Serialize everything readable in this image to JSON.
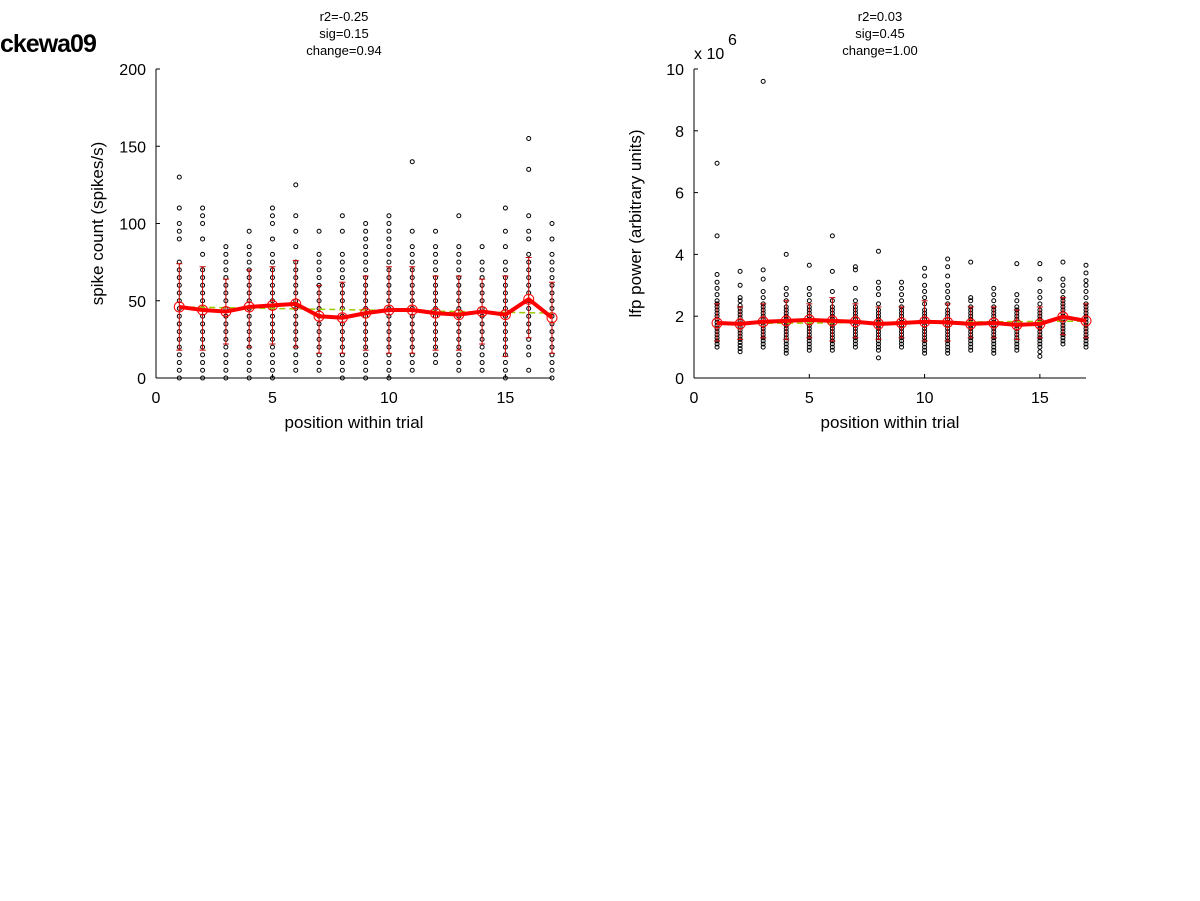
{
  "figure_label": "ckewa09",
  "colors": {
    "mean_line": "#ff0000",
    "error_bar": "#cc0000",
    "fit_line": "#99cc00",
    "points": "#000000"
  },
  "chart_data": [
    {
      "type": "scatter",
      "title_lines": [
        "r2=-0.25",
        "sig=0.15",
        "change=0.94"
      ],
      "xlabel": "position within trial",
      "ylabel": "spike count (spikes/s)",
      "xlim": [
        0,
        17
      ],
      "ylim": [
        0,
        200
      ],
      "xticks": [
        0,
        5,
        10,
        15
      ],
      "yticks": [
        0,
        50,
        100,
        150,
        200
      ],
      "exponent_label": "",
      "exponent_power": "",
      "grid": false,
      "x": [
        1,
        2,
        3,
        4,
        5,
        6,
        7,
        8,
        9,
        10,
        11,
        12,
        13,
        14,
        15,
        16,
        17
      ],
      "mean": [
        46,
        44,
        43,
        46,
        47,
        48,
        40,
        39,
        42,
        44,
        44,
        42,
        41,
        43,
        41,
        51,
        39
      ],
      "error_lower": [
        18,
        18,
        22,
        20,
        22,
        20,
        16,
        16,
        18,
        16,
        16,
        18,
        18,
        22,
        14,
        26,
        16
      ],
      "error_upper": [
        74,
        72,
        64,
        70,
        72,
        76,
        60,
        62,
        66,
        72,
        72,
        66,
        66,
        64,
        66,
        78,
        62
      ],
      "fit_line": {
        "x": [
          1,
          17
        ],
        "y": [
          46,
          42
        ]
      },
      "points": [
        [
          0,
          5,
          10,
          15,
          20,
          25,
          30,
          35,
          40,
          45,
          50,
          55,
          60,
          65,
          70,
          75,
          90,
          95,
          100,
          110,
          130
        ],
        [
          0,
          5,
          10,
          15,
          20,
          25,
          30,
          35,
          40,
          45,
          50,
          55,
          60,
          65,
          70,
          80,
          90,
          100,
          105,
          110
        ],
        [
          0,
          5,
          10,
          15,
          20,
          25,
          30,
          35,
          40,
          45,
          50,
          55,
          60,
          65,
          70,
          75,
          80,
          85
        ],
        [
          0,
          5,
          10,
          15,
          20,
          25,
          30,
          35,
          40,
          45,
          50,
          55,
          60,
          65,
          70,
          75,
          80,
          85,
          95
        ],
        [
          0,
          5,
          10,
          15,
          20,
          25,
          30,
          35,
          40,
          45,
          50,
          55,
          60,
          65,
          70,
          75,
          80,
          90,
          100,
          105,
          110
        ],
        [
          5,
          10,
          15,
          20,
          25,
          30,
          35,
          40,
          45,
          50,
          55,
          60,
          65,
          70,
          75,
          85,
          95,
          105,
          125
        ],
        [
          5,
          10,
          15,
          20,
          25,
          30,
          35,
          40,
          45,
          50,
          55,
          60,
          65,
          70,
          75,
          80,
          95
        ],
        [
          0,
          5,
          10,
          15,
          20,
          25,
          30,
          35,
          40,
          45,
          50,
          55,
          60,
          65,
          70,
          75,
          80,
          95,
          105
        ],
        [
          0,
          5,
          10,
          15,
          20,
          25,
          30,
          35,
          40,
          45,
          50,
          55,
          60,
          65,
          70,
          75,
          80,
          85,
          90,
          95,
          100
        ],
        [
          0,
          5,
          10,
          15,
          20,
          25,
          30,
          35,
          40,
          45,
          50,
          55,
          60,
          65,
          70,
          75,
          80,
          85,
          90,
          95,
          100,
          105
        ],
        [
          5,
          10,
          15,
          20,
          25,
          30,
          35,
          40,
          45,
          50,
          55,
          60,
          65,
          70,
          75,
          80,
          85,
          95,
          140
        ],
        [
          10,
          15,
          20,
          25,
          30,
          35,
          40,
          45,
          50,
          55,
          60,
          65,
          70,
          75,
          80,
          85,
          95
        ],
        [
          5,
          10,
          15,
          20,
          25,
          30,
          35,
          40,
          45,
          50,
          55,
          60,
          65,
          70,
          75,
          80,
          85,
          105
        ],
        [
          5,
          10,
          15,
          20,
          25,
          30,
          35,
          40,
          45,
          50,
          55,
          60,
          65,
          70,
          75,
          85
        ],
        [
          0,
          5,
          10,
          15,
          20,
          25,
          30,
          35,
          40,
          45,
          50,
          55,
          60,
          65,
          70,
          75,
          85,
          95,
          110
        ],
        [
          5,
          15,
          20,
          25,
          30,
          35,
          40,
          45,
          50,
          55,
          60,
          65,
          70,
          75,
          80,
          90,
          95,
          105,
          135,
          155
        ],
        [
          0,
          5,
          10,
          15,
          20,
          25,
          30,
          35,
          40,
          45,
          50,
          55,
          60,
          65,
          70,
          75,
          80,
          90,
          100
        ]
      ]
    },
    {
      "type": "scatter",
      "title_lines": [
        "r2=0.03",
        "sig=0.45",
        "change=1.00"
      ],
      "xlabel": "position within trial",
      "ylabel": "lfp power (arbitrary units)",
      "xlim": [
        0,
        17
      ],
      "ylim": [
        0,
        10
      ],
      "xticks": [
        0,
        5,
        10,
        15
      ],
      "yticks": [
        0,
        2,
        4,
        6,
        8,
        10
      ],
      "exponent_label": "x 10",
      "exponent_power": "6",
      "grid": false,
      "x": [
        1,
        2,
        3,
        4,
        5,
        6,
        7,
        8,
        9,
        10,
        11,
        12,
        13,
        14,
        15,
        16,
        17
      ],
      "mean": [
        1.78,
        1.75,
        1.82,
        1.85,
        1.88,
        1.85,
        1.82,
        1.75,
        1.78,
        1.82,
        1.8,
        1.75,
        1.78,
        1.72,
        1.75,
        1.98,
        1.85
      ],
      "error_lower": [
        1.2,
        1.25,
        1.3,
        1.25,
        1.3,
        1.2,
        1.3,
        1.25,
        1.3,
        1.2,
        1.2,
        1.3,
        1.3,
        1.25,
        1.3,
        1.4,
        1.3
      ],
      "error_upper": [
        2.4,
        2.3,
        2.4,
        2.5,
        2.4,
        2.6,
        2.4,
        2.3,
        2.3,
        2.5,
        2.4,
        2.3,
        2.3,
        2.2,
        2.3,
        2.6,
        2.4
      ],
      "fit_line": {
        "x": [
          1,
          17
        ],
        "y": [
          1.76,
          1.84
        ]
      },
      "points": [
        [
          1.0,
          1.1,
          1.2,
          1.3,
          1.4,
          1.5,
          1.6,
          1.7,
          1.8,
          1.9,
          2.0,
          2.1,
          2.2,
          2.3,
          2.4,
          2.5,
          2.7,
          2.9,
          3.1,
          3.35,
          4.6,
          6.95
        ],
        [
          0.85,
          0.95,
          1.05,
          1.15,
          1.25,
          1.35,
          1.45,
          1.55,
          1.65,
          1.75,
          1.85,
          1.95,
          2.05,
          2.15,
          2.25,
          2.35,
          2.5,
          2.6,
          3.0,
          3.45
        ],
        [
          1.0,
          1.1,
          1.2,
          1.3,
          1.4,
          1.5,
          1.6,
          1.7,
          1.8,
          1.9,
          2.0,
          2.1,
          2.2,
          2.3,
          2.4,
          2.6,
          2.8,
          3.2,
          3.5,
          9.6
        ],
        [
          0.8,
          0.9,
          1.0,
          1.1,
          1.2,
          1.3,
          1.4,
          1.5,
          1.6,
          1.7,
          1.8,
          1.9,
          2.0,
          2.1,
          2.2,
          2.3,
          2.5,
          2.7,
          2.9,
          4.0
        ],
        [
          0.9,
          1.0,
          1.1,
          1.2,
          1.3,
          1.4,
          1.5,
          1.6,
          1.7,
          1.8,
          1.9,
          2.0,
          2.1,
          2.2,
          2.3,
          2.5,
          2.7,
          2.9,
          3.65
        ],
        [
          0.9,
          1.0,
          1.1,
          1.2,
          1.3,
          1.4,
          1.5,
          1.6,
          1.7,
          1.8,
          1.9,
          2.0,
          2.1,
          2.2,
          2.3,
          2.5,
          2.8,
          3.45,
          4.6
        ],
        [
          1.0,
          1.1,
          1.2,
          1.3,
          1.4,
          1.5,
          1.6,
          1.7,
          1.8,
          1.9,
          2.0,
          2.1,
          2.2,
          2.3,
          2.5,
          2.9,
          3.5,
          3.6
        ],
        [
          0.65,
          0.9,
          1.0,
          1.1,
          1.2,
          1.3,
          1.4,
          1.5,
          1.6,
          1.7,
          1.8,
          1.9,
          2.0,
          2.1,
          2.2,
          2.4,
          2.7,
          2.9,
          3.1,
          4.1
        ],
        [
          1.0,
          1.1,
          1.2,
          1.3,
          1.4,
          1.5,
          1.6,
          1.7,
          1.8,
          1.9,
          2.0,
          2.1,
          2.2,
          2.3,
          2.5,
          2.7,
          2.9,
          3.1
        ],
        [
          0.8,
          0.9,
          1.0,
          1.1,
          1.2,
          1.3,
          1.4,
          1.5,
          1.6,
          1.7,
          1.8,
          1.9,
          2.0,
          2.1,
          2.2,
          2.4,
          2.6,
          2.8,
          3.0,
          3.3,
          3.55
        ],
        [
          0.8,
          0.9,
          1.0,
          1.1,
          1.2,
          1.3,
          1.4,
          1.5,
          1.6,
          1.7,
          1.8,
          1.9,
          2.0,
          2.1,
          2.2,
          2.4,
          2.6,
          2.8,
          3.0,
          3.3,
          3.6,
          3.85
        ],
        [
          0.9,
          1.0,
          1.1,
          1.2,
          1.3,
          1.4,
          1.5,
          1.6,
          1.7,
          1.8,
          1.9,
          2.0,
          2.1,
          2.2,
          2.3,
          2.5,
          2.6,
          3.75
        ],
        [
          0.8,
          0.9,
          1.0,
          1.1,
          1.2,
          1.3,
          1.4,
          1.5,
          1.6,
          1.7,
          1.8,
          1.9,
          2.0,
          2.1,
          2.2,
          2.3,
          2.5,
          2.7,
          2.9
        ],
        [
          0.9,
          1.0,
          1.1,
          1.2,
          1.3,
          1.4,
          1.5,
          1.6,
          1.7,
          1.8,
          1.9,
          2.0,
          2.1,
          2.2,
          2.3,
          2.5,
          2.7,
          3.7
        ],
        [
          0.7,
          0.85,
          1.0,
          1.1,
          1.2,
          1.3,
          1.4,
          1.5,
          1.6,
          1.7,
          1.8,
          1.9,
          2.0,
          2.1,
          2.2,
          2.4,
          2.6,
          2.8,
          3.2,
          3.7
        ],
        [
          1.1,
          1.2,
          1.3,
          1.4,
          1.5,
          1.6,
          1.7,
          1.8,
          1.9,
          2.0,
          2.1,
          2.2,
          2.3,
          2.4,
          2.5,
          2.6,
          2.8,
          3.0,
          3.2,
          3.75
        ],
        [
          1.0,
          1.1,
          1.2,
          1.3,
          1.4,
          1.5,
          1.6,
          1.7,
          1.8,
          1.9,
          2.0,
          2.1,
          2.2,
          2.3,
          2.4,
          2.6,
          2.8,
          3.0,
          3.15,
          3.4,
          3.65
        ]
      ]
    }
  ]
}
